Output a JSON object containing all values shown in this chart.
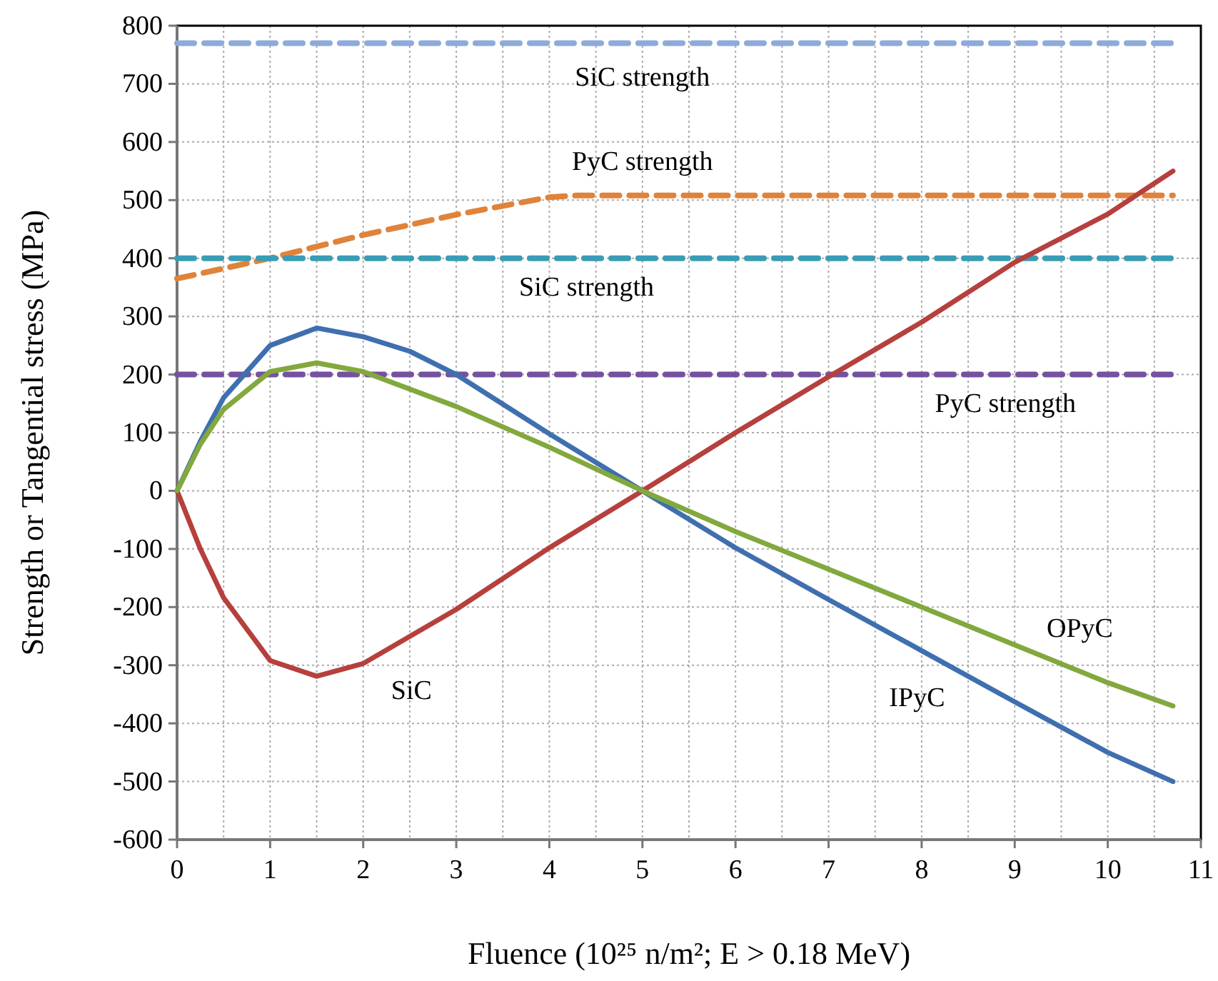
{
  "chart_data": {
    "type": "line",
    "xlabel": "Fluence (10²⁵ n/m²; E > 0.18 MeV)",
    "ylabel": "Strength or Tangential stress (MPa)",
    "xlim": [
      0,
      11
    ],
    "xticks": [
      0,
      {
        "value": 0.5,
        "label": null
      },
      1,
      {
        "value": 1.5,
        "label": null
      },
      2,
      {
        "value": 2.5,
        "label": null
      },
      3,
      {
        "value": 3.5,
        "label": null
      },
      4,
      {
        "value": 4.5,
        "label": null
      },
      5,
      {
        "value": 5.5,
        "label": null
      },
      6,
      {
        "value": 6.5,
        "label": null
      },
      7,
      {
        "value": 7.5,
        "label": null
      },
      8,
      {
        "value": 8.5,
        "label": null
      },
      9,
      {
        "value": 9.5,
        "label": null
      },
      10,
      {
        "value": 10.5,
        "label": null
      },
      11
    ],
    "ylim": [
      -600,
      800
    ],
    "yticks": [
      -600,
      -500,
      -400,
      -300,
      -200,
      -100,
      0,
      100,
      200,
      300,
      400,
      500,
      600,
      700,
      800
    ],
    "grid": true,
    "marker": "none",
    "series": [
      {
        "name": "SiC strength",
        "color": "#8eaadb",
        "line_style": "dashed",
        "x": [
          0,
          10.7
        ],
        "values": [
          770,
          770
        ]
      },
      {
        "name": "PyC strength",
        "color": "#e0833a",
        "line_style": "dashed",
        "x": [
          0,
          1,
          2,
          3,
          4,
          4.3,
          10.7
        ],
        "values": [
          365,
          400,
          440,
          475,
          505,
          508,
          508
        ]
      },
      {
        "name": "SiC strength",
        "color": "#3a9cb5",
        "line_style": "dashed",
        "x": [
          0,
          10.7
        ],
        "values": [
          400,
          400
        ]
      },
      {
        "name": "PyC strength",
        "color": "#7552a0",
        "line_style": "dashed",
        "x": [
          0,
          10.7
        ],
        "values": [
          200,
          200
        ]
      },
      {
        "name": "SiC",
        "color": "#b5403d",
        "line_style": "solid",
        "x": [
          0,
          0.25,
          0.5,
          1,
          1.5,
          2,
          3,
          4,
          5,
          6,
          7,
          8,
          9,
          10,
          10.7
        ],
        "values": [
          0,
          -100,
          -184,
          -292,
          -319,
          -297,
          -204,
          -98,
          0,
          100,
          196,
          290,
          393,
          476,
          550
        ]
      },
      {
        "name": "IPyC",
        "color": "#3f6faf",
        "line_style": "solid",
        "x": [
          0,
          0.25,
          0.5,
          1,
          1.5,
          2,
          2.5,
          3,
          4,
          5,
          6,
          7,
          8,
          9,
          10,
          10.7
        ],
        "values": [
          0,
          85,
          160,
          250,
          280,
          265,
          240,
          200,
          98,
          0,
          -98,
          -187,
          -275,
          -363,
          -450,
          -500
        ]
      },
      {
        "name": "OPyC",
        "color": "#82a83e",
        "line_style": "solid",
        "x": [
          0,
          0.25,
          0.5,
          1,
          1.5,
          2,
          3,
          4,
          5,
          6,
          7,
          8,
          9,
          10,
          10.7
        ],
        "values": [
          0,
          80,
          140,
          205,
          220,
          205,
          145,
          75,
          0,
          -70,
          -135,
          -200,
          -265,
          -330,
          -370
        ]
      }
    ]
  }
}
